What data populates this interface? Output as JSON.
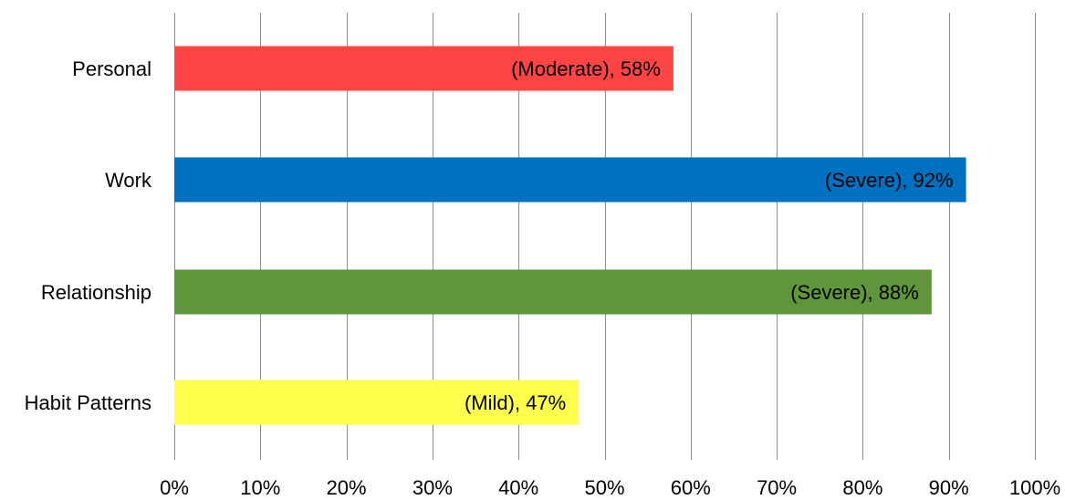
{
  "chart_data": {
    "type": "bar",
    "orientation": "horizontal",
    "title": "",
    "xlabel": "",
    "ylabel": "",
    "xlim": [
      0,
      100
    ],
    "x_tick_step": 10,
    "x_tick_labels": [
      "0%",
      "10%",
      "20%",
      "30%",
      "40%",
      "50%",
      "60%",
      "70%",
      "80%",
      "90%",
      "100%"
    ],
    "grid": "vertical",
    "legend": "none",
    "categories": [
      "Personal",
      "Work",
      "Relationship",
      "Habit Patterns"
    ],
    "values": [
      58,
      92,
      88,
      47
    ],
    "data_labels": [
      "(Moderate), 58%",
      "(Severe), 92%",
      "(Severe), 88%",
      "(Mild), 47%"
    ],
    "colors": [
      "#ff4444",
      "#0070c0",
      "#5f953b",
      "#ffff4d"
    ]
  }
}
